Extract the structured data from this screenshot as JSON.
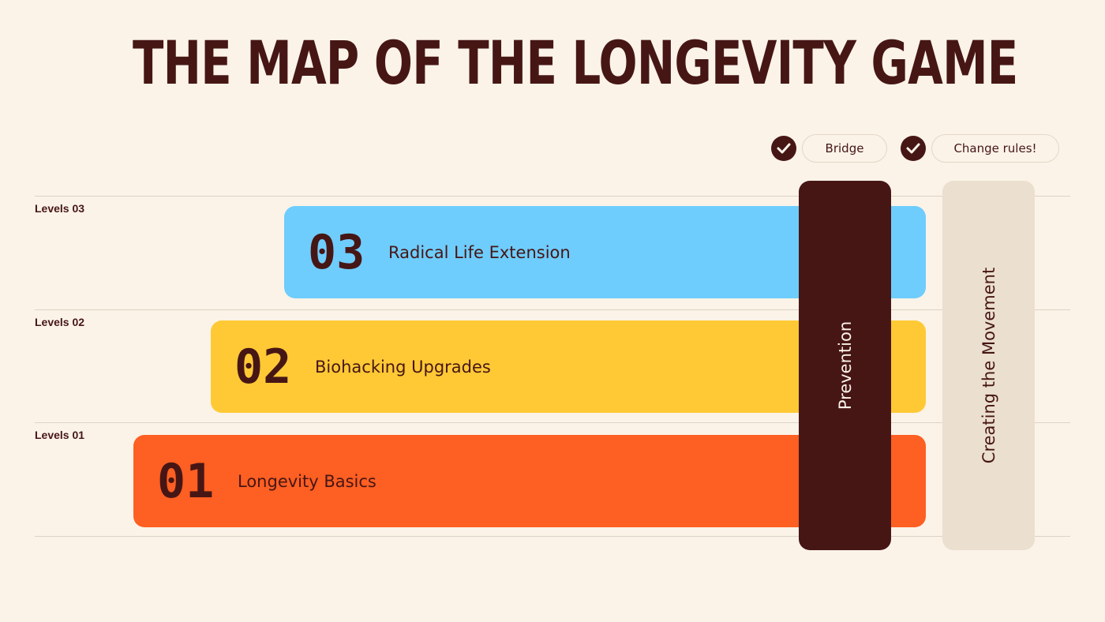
{
  "title": "THE MAP OF THE LONGEVITY GAME",
  "checkpoints": [
    {
      "label": "Bridge"
    },
    {
      "label": "Change rules!"
    }
  ],
  "levels": [
    {
      "label": "Levels 03",
      "number": "03",
      "name": "Radical Life Extension",
      "color": "#6ecdfd"
    },
    {
      "label": "Levels 02",
      "number": "02",
      "name": "Biohacking Upgrades",
      "color": "#fec935"
    },
    {
      "label": "Levels 01",
      "number": "01",
      "name": "Longevity Basics",
      "color": "#fe5f22"
    }
  ],
  "columns": [
    {
      "label": "Prevention",
      "color": "#461615",
      "text_color": "#fbf3e8"
    },
    {
      "label": "Creating the Movement",
      "color": "#ebdfcf",
      "text_color": "#461615"
    }
  ],
  "colors": {
    "background": "#fbf3e8",
    "text": "#461615"
  }
}
